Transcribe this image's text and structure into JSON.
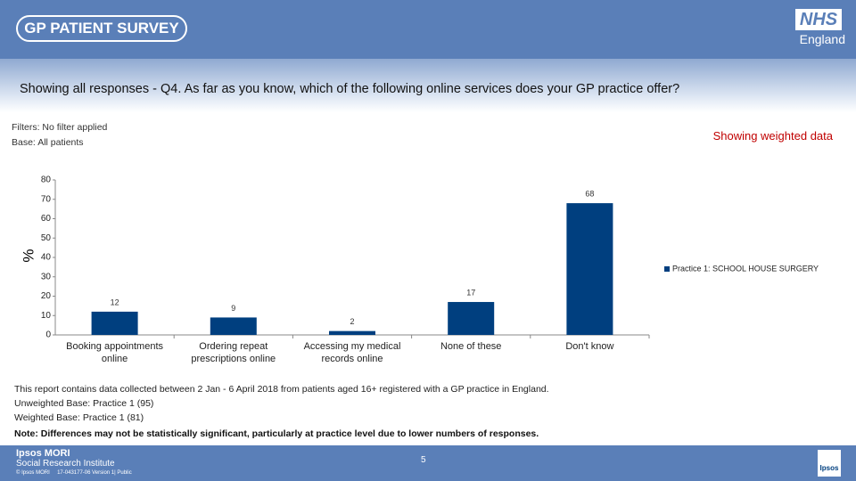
{
  "header": {
    "logo": "GP PATIENT SURVEY",
    "nhs": "NHS",
    "region": "England"
  },
  "chart_data": {
    "type": "bar",
    "title": "Showing all responses - Q4.  As far as you know, which of the following online services does your GP practice offer?",
    "filters": "Filters: No filter applied",
    "base": "Base: All patients",
    "weighting": "Showing weighted data",
    "y_label": "%",
    "categories": [
      "Booking appointments online",
      "Ordering repeat prescriptions online",
      "Accessing my medical records online",
      "None of these",
      "Don't know"
    ],
    "series": [
      {
        "name": "Practice 1: SCHOOL HOUSE SURGERY",
        "color": "#003f7f",
        "values": [
          12,
          9,
          2,
          17,
          68
        ]
      }
    ],
    "ylim": [
      0,
      80
    ],
    "yticks": [
      0,
      10,
      20,
      30,
      40,
      50,
      60,
      70,
      80
    ],
    "grid": false,
    "legend": "right"
  },
  "notes": [
    "This report contains data collected between 2 Jan - 6 April 2018 from patients aged 16+ registered with a GP practice in England.",
    "Unweighted Base: Practice 1 (95)",
    "Weighted Base: Practice 1 (81)",
    "Note: Differences may not be statistically significant, particularly at practice level due to lower numbers of responses."
  ],
  "footer": {
    "org": "Ipsos MORI",
    "institute": "Social Research Institute",
    "credit": "© Ipsos MORI     17-043177-06 Version 1| Public",
    "page": "5",
    "logo": "Ipsos"
  }
}
